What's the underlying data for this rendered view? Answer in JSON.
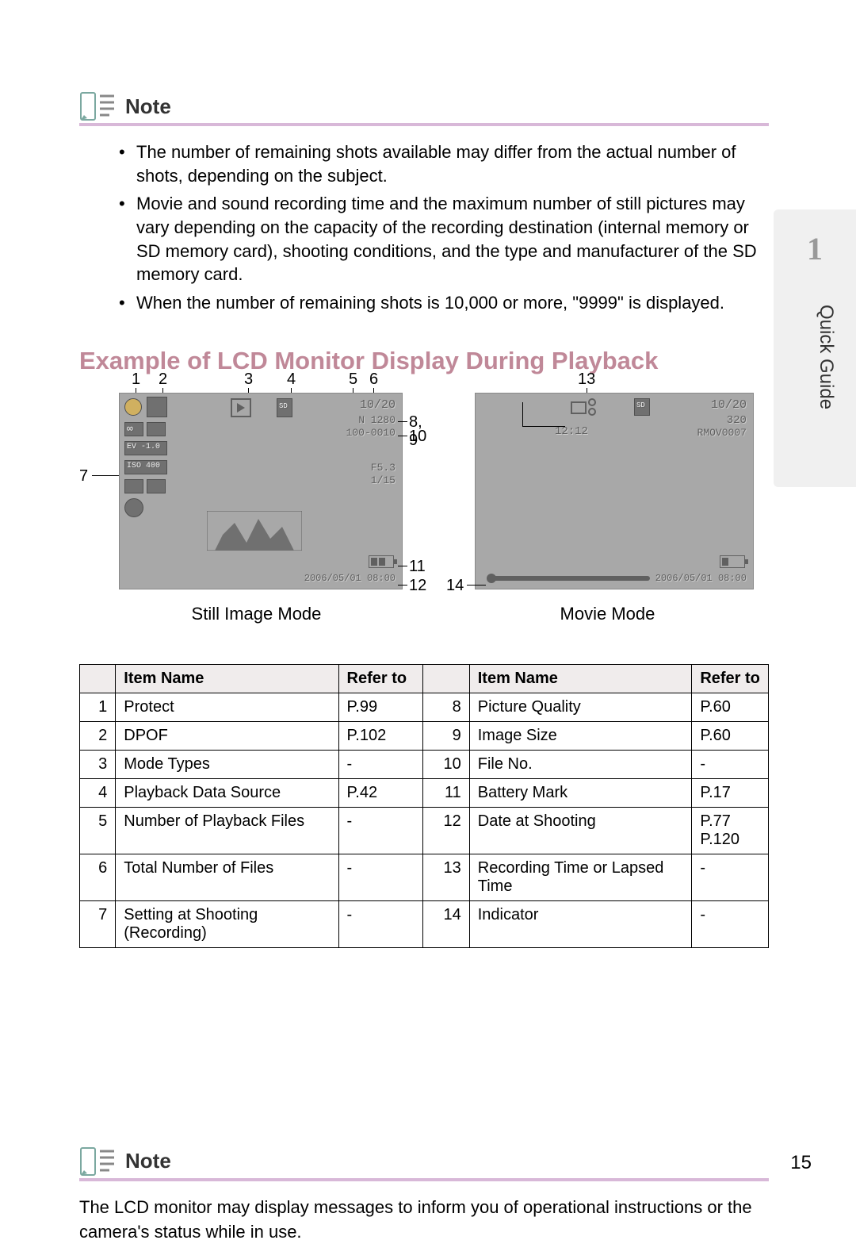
{
  "side": {
    "number": "1",
    "label": "Quick Guide"
  },
  "note1": {
    "title": "Note",
    "bullets": [
      "The number of remaining shots available may differ from the actual number of shots, depending on the subject.",
      "Movie and sound recording time and the maximum number of still pictures may vary depending on the capacity of the recording destination (internal memory or SD memory card), shooting conditions, and the type and manufacturer of the SD memory card.",
      "When the number of remaining shots is 10,000 or more, \"9999\" is displayed."
    ]
  },
  "section_title": "Example of LCD Monitor Display During Playback",
  "still": {
    "label": "Still Image Mode",
    "top_nums": [
      "1",
      "2",
      "3",
      "4",
      "5",
      "6"
    ],
    "side7": "7",
    "r89": "8, 9",
    "r10": "10",
    "r11": "11",
    "r12": "12",
    "lcd": {
      "top_right": "10/20",
      "size": "N 1280",
      "file": "100-0010",
      "f": "F5.3",
      "shutter": "1/15",
      "date": "2006/05/01 08:00",
      "ev": "EV -1.0",
      "iso": "ISO 400",
      "wb_loop": "∞"
    }
  },
  "movie": {
    "label": "Movie Mode",
    "top13": "13",
    "side14": "14",
    "lcd": {
      "top_right": "10/20",
      "size": "320",
      "time": "12:12",
      "file": "RMOV0007",
      "date": "2006/05/01 08:00"
    }
  },
  "table": {
    "headers": {
      "item": "Item Name",
      "ref": "Refer to"
    },
    "rows_left": [
      {
        "n": "1",
        "name": "Protect",
        "ref": "P.99"
      },
      {
        "n": "2",
        "name": "DPOF",
        "ref": "P.102"
      },
      {
        "n": "3",
        "name": "Mode Types",
        "ref": "-"
      },
      {
        "n": "4",
        "name": "Playback Data Source",
        "ref": "P.42"
      },
      {
        "n": "5",
        "name": "Number of Playback Files",
        "ref": "-"
      },
      {
        "n": "6",
        "name": "Total Number of Files",
        "ref": "-"
      },
      {
        "n": "7",
        "name": "Setting at Shooting (Recording)",
        "ref": "-"
      }
    ],
    "rows_right": [
      {
        "n": "8",
        "name": "Picture Quality",
        "ref": "P.60"
      },
      {
        "n": "9",
        "name": "Image Size",
        "ref": "P.60"
      },
      {
        "n": "10",
        "name": "File No.",
        "ref": "-"
      },
      {
        "n": "11",
        "name": "Battery Mark",
        "ref": "P.17"
      },
      {
        "n": "12",
        "name": "Date at Shooting",
        "ref": "P.77\nP.120"
      },
      {
        "n": "13",
        "name": "Recording Time or Lapsed Time",
        "ref": "-"
      },
      {
        "n": "14",
        "name": "Indicator",
        "ref": "-"
      }
    ]
  },
  "note2": {
    "title": "Note",
    "text": "The LCD monitor may display messages to inform you of operational instructions or the camera's status while in use."
  },
  "page_num": "15",
  "colors": {
    "side_bg": "#f0f0f0",
    "side_num": "#999999",
    "note_border": "#d8b8d8",
    "section_title": "#c08898",
    "lcd_bg": "#a8a8a8",
    "th_bg": "#f0ecec"
  }
}
